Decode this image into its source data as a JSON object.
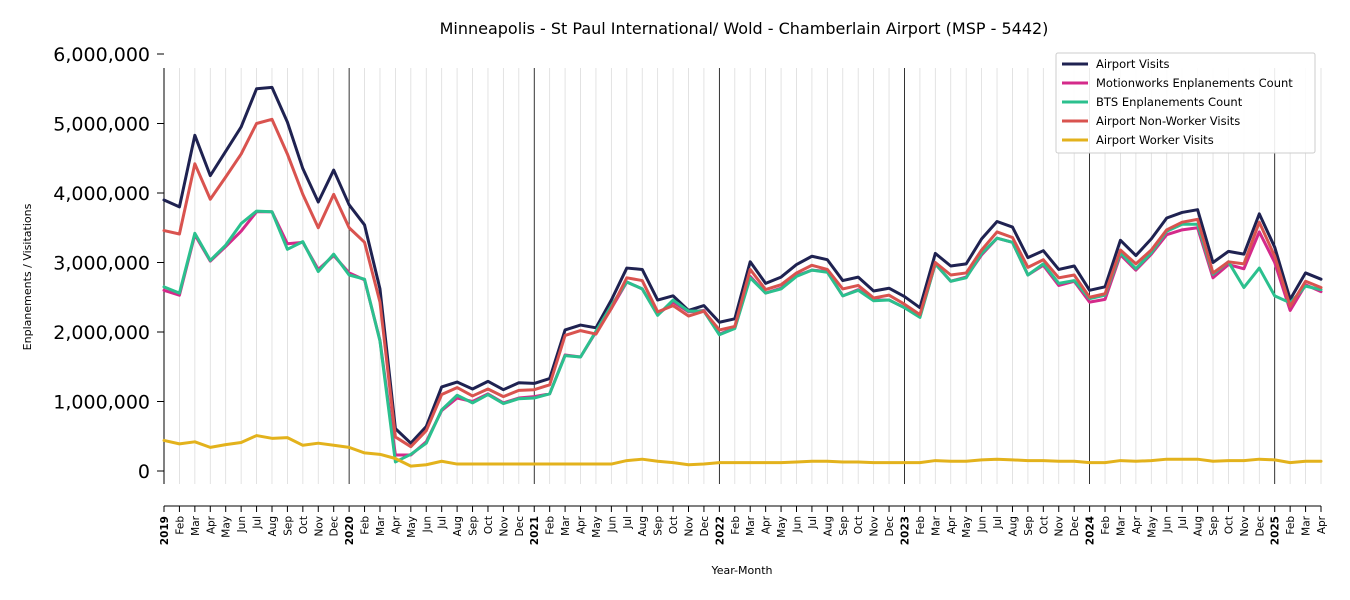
{
  "chart_data": {
    "type": "line",
    "title": "Minneapolis - St Paul International/ Wold - Chamberlain Airport (MSP - 5442)",
    "xlabel": "Year-Month",
    "ylabel": "Enplanements / Visitations",
    "ylim": [
      0,
      6000000
    ],
    "yticks": [
      0,
      1000000,
      2000000,
      3000000,
      4000000,
      5000000,
      6000000
    ],
    "ytick_labels": [
      "0",
      "1,000,000",
      "2,000,000",
      "3,000,000",
      "4,000,000",
      "5,000,000",
      "6,000,000"
    ],
    "legend_position": "top-right",
    "grid": "vertical minor gridlines per month, darker line at each January",
    "x": [
      "2019",
      "Feb",
      "Mar",
      "Apr",
      "May",
      "Jun",
      "Jul",
      "Aug",
      "Sep",
      "Oct",
      "Nov",
      "Dec",
      "2020",
      "Feb",
      "Mar",
      "Apr",
      "May",
      "Jun",
      "Jul",
      "Aug",
      "Sep",
      "Oct",
      "Nov",
      "Dec",
      "2021",
      "Feb",
      "Mar",
      "Apr",
      "May",
      "Jun",
      "Jul",
      "Aug",
      "Sep",
      "Oct",
      "Nov",
      "Dec",
      "2022",
      "Feb",
      "Mar",
      "Apr",
      "May",
      "Jun",
      "Jul",
      "Aug",
      "Sep",
      "Oct",
      "Nov",
      "Dec",
      "2023",
      "Feb",
      "Mar",
      "Apr",
      "May",
      "Jun",
      "Jul",
      "Aug",
      "Sep",
      "Oct",
      "Nov",
      "Dec",
      "2024",
      "Feb",
      "Mar",
      "Apr",
      "May",
      "Jun",
      "Jul",
      "Aug",
      "Sep",
      "Oct",
      "Nov",
      "Dec",
      "2025",
      "Feb",
      "Mar",
      "Apr"
    ],
    "series": [
      {
        "name": "Airport Visits",
        "color": "#1f2251",
        "values": [
          3900000,
          3800000,
          4830000,
          4250000,
          4600000,
          4950000,
          5500000,
          5520000,
          5020000,
          4350000,
          3870000,
          4330000,
          3830000,
          3540000,
          2620000,
          610000,
          400000,
          640000,
          1210000,
          1280000,
          1180000,
          1290000,
          1170000,
          1270000,
          1260000,
          1330000,
          2030000,
          2100000,
          2060000,
          2460000,
          2920000,
          2900000,
          2460000,
          2520000,
          2310000,
          2380000,
          2140000,
          2190000,
          3010000,
          2700000,
          2790000,
          2970000,
          3090000,
          3040000,
          2740000,
          2790000,
          2590000,
          2630000,
          2510000,
          2350000,
          3130000,
          2950000,
          2980000,
          3340000,
          3590000,
          3510000,
          3070000,
          3170000,
          2900000,
          2950000,
          2600000,
          2650000,
          3320000,
          3100000,
          3340000,
          3640000,
          3720000,
          3760000,
          3000000,
          3160000,
          3120000,
          3700000,
          3220000,
          2470000,
          2850000,
          2760000
        ]
      },
      {
        "name": "Motionworks Enplanements Count",
        "color": "#d42a8a",
        "values": [
          2600000,
          2530000,
          3400000,
          3020000,
          3230000,
          3450000,
          3730000,
          3730000,
          3270000,
          3290000,
          2900000,
          3100000,
          2850000,
          2750000,
          1880000,
          230000,
          230000,
          420000,
          870000,
          1050000,
          1000000,
          1110000,
          980000,
          1050000,
          1070000,
          1110000,
          1670000,
          1640000,
          2000000,
          2340000,
          2720000,
          2620000,
          2250000,
          2430000,
          2290000,
          2310000,
          1970000,
          2060000,
          2800000,
          2560000,
          2630000,
          2810000,
          2890000,
          2870000,
          2520000,
          2610000,
          2460000,
          2460000,
          2350000,
          2230000,
          2980000,
          2730000,
          2790000,
          3110000,
          3350000,
          3290000,
          2820000,
          2960000,
          2670000,
          2730000,
          2430000,
          2470000,
          3110000,
          2890000,
          3120000,
          3400000,
          3470000,
          3500000,
          2780000,
          2970000,
          2910000,
          3440000,
          3000000,
          2310000,
          2680000,
          2580000
        ]
      },
      {
        "name": "BTS Enplanements Count",
        "color": "#2bc08e",
        "values": [
          2650000,
          2560000,
          3420000,
          3030000,
          3250000,
          3560000,
          3740000,
          3730000,
          3190000,
          3300000,
          2870000,
          3120000,
          2820000,
          2760000,
          1870000,
          130000,
          240000,
          400000,
          880000,
          1090000,
          980000,
          1100000,
          970000,
          1040000,
          1050000,
          1110000,
          1660000,
          1640000,
          2010000,
          2380000,
          2720000,
          2620000,
          2240000,
          2460000,
          2300000,
          2300000,
          1960000,
          2050000,
          2780000,
          2560000,
          2620000,
          2800000,
          2890000,
          2860000,
          2520000,
          2600000,
          2450000,
          2460000,
          2350000,
          2210000,
          2980000,
          2730000,
          2780000,
          3130000,
          3350000,
          3290000,
          2820000,
          2980000,
          2700000,
          2740000,
          2480000,
          2530000,
          3140000,
          2910000,
          3140000,
          3450000,
          3550000,
          3550000,
          2830000,
          3010000,
          2640000,
          2920000,
          2520000,
          2420000,
          2660000,
          2610000
        ]
      },
      {
        "name": "Airport Non-Worker Visits",
        "color": "#d9534f",
        "values": [
          3460000,
          3410000,
          4420000,
          3910000,
          4230000,
          4560000,
          5000000,
          5060000,
          4560000,
          3980000,
          3500000,
          3980000,
          3500000,
          3290000,
          2430000,
          490000,
          350000,
          580000,
          1100000,
          1200000,
          1080000,
          1180000,
          1070000,
          1160000,
          1170000,
          1240000,
          1950000,
          2020000,
          1970000,
          2340000,
          2780000,
          2740000,
          2290000,
          2380000,
          2230000,
          2300000,
          2030000,
          2080000,
          2900000,
          2610000,
          2680000,
          2850000,
          2960000,
          2900000,
          2620000,
          2670000,
          2490000,
          2530000,
          2400000,
          2250000,
          3000000,
          2820000,
          2850000,
          3180000,
          3440000,
          3360000,
          2930000,
          3040000,
          2780000,
          2820000,
          2500000,
          2550000,
          3180000,
          2980000,
          3180000,
          3470000,
          3580000,
          3620000,
          2850000,
          3010000,
          2980000,
          3580000,
          3090000,
          2370000,
          2730000,
          2640000
        ]
      },
      {
        "name": "Airport Worker Visits",
        "color": "#e3b21c",
        "values": [
          440000,
          390000,
          420000,
          340000,
          380000,
          410000,
          510000,
          470000,
          480000,
          370000,
          400000,
          370000,
          340000,
          260000,
          240000,
          180000,
          70000,
          90000,
          140000,
          100000,
          100000,
          100000,
          100000,
          100000,
          100000,
          100000,
          100000,
          100000,
          100000,
          100000,
          150000,
          170000,
          140000,
          120000,
          90000,
          100000,
          120000,
          120000,
          120000,
          120000,
          120000,
          130000,
          140000,
          140000,
          130000,
          130000,
          120000,
          120000,
          120000,
          120000,
          150000,
          140000,
          140000,
          160000,
          170000,
          160000,
          150000,
          150000,
          140000,
          140000,
          120000,
          120000,
          150000,
          140000,
          150000,
          170000,
          170000,
          170000,
          140000,
          150000,
          150000,
          170000,
          160000,
          120000,
          140000,
          140000
        ]
      }
    ]
  }
}
